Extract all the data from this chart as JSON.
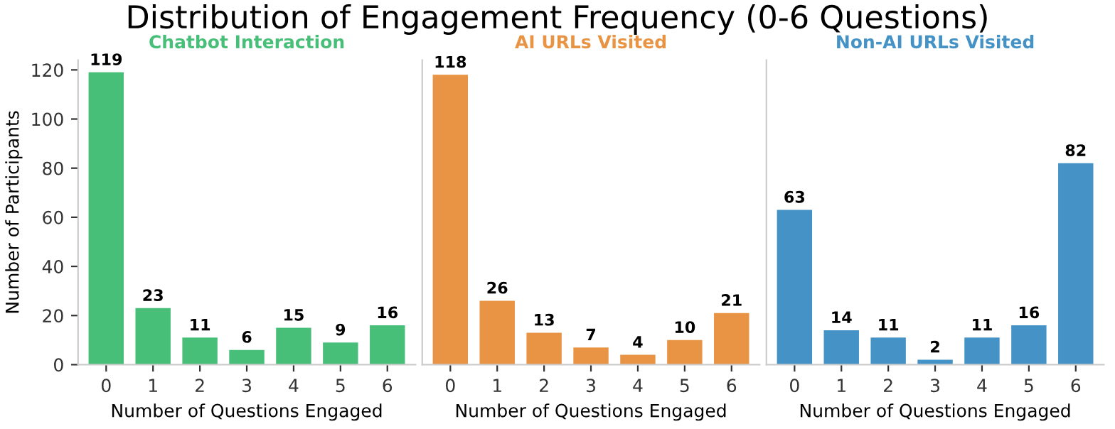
{
  "chart_data": [
    {
      "type": "bar",
      "title": "Chatbot Interaction",
      "annotations": [
        "Distribution of Engagement Frequency (0-6 Questions)"
      ],
      "xlabel": "Number of Questions Engaged",
      "ylabel": "Number of Participants",
      "categories": [
        "0",
        "1",
        "2",
        "3",
        "4",
        "5",
        "6"
      ],
      "values": [
        119,
        23,
        11,
        6,
        15,
        9,
        16
      ],
      "color": "#48bf78",
      "ylim": [
        0,
        124
      ],
      "yticks": [
        0,
        20,
        40,
        60,
        80,
        100,
        120
      ],
      "data_labels": true
    },
    {
      "type": "bar",
      "title": "AI URLs Visited",
      "xlabel": "Number of Questions Engaged",
      "categories": [
        "0",
        "1",
        "2",
        "3",
        "4",
        "5",
        "6"
      ],
      "values": [
        118,
        26,
        13,
        7,
        4,
        10,
        21
      ],
      "color": "#e89444",
      "ylim": [
        0,
        124
      ],
      "yticks": [
        0,
        20,
        40,
        60,
        80,
        100,
        120
      ],
      "tick_labels": "x",
      "data_labels": true
    },
    {
      "type": "bar",
      "title": "Non-AI URLs Visited",
      "xlabel": "Number of Questions Engaged",
      "categories": [
        "0",
        "1",
        "2",
        "3",
        "4",
        "5",
        "6"
      ],
      "values": [
        63,
        14,
        11,
        2,
        11,
        16,
        82
      ],
      "color": "#4592c6",
      "ylim": [
        0,
        124
      ],
      "yticks": [
        0,
        20,
        40,
        60,
        80,
        100,
        120
      ],
      "tick_labels": "x",
      "data_labels": true
    }
  ]
}
